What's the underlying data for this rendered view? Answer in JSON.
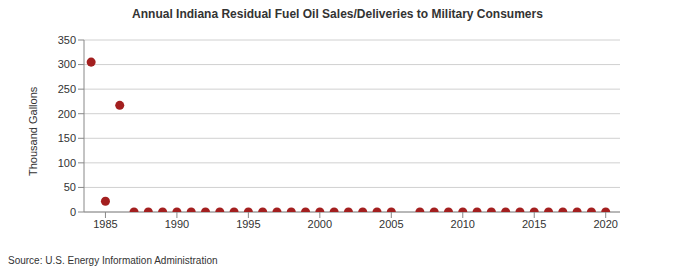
{
  "chart_data": {
    "type": "scatter",
    "title": "Annual Indiana Residual Fuel Oil Sales/Deliveries to Military Consumers",
    "y_label": "Thousand Gallons",
    "source": "Source: U.S. Energy Information Administration",
    "x": [
      1984,
      1985,
      1986,
      1987,
      1988,
      1989,
      1990,
      1991,
      1992,
      1993,
      1994,
      1995,
      1996,
      1997,
      1998,
      1999,
      2000,
      2001,
      2002,
      2003,
      2004,
      2005,
      2007,
      2008,
      2009,
      2010,
      2011,
      2012,
      2013,
      2014,
      2015,
      2016,
      2017,
      2018,
      2019,
      2020
    ],
    "values": [
      305,
      22,
      217,
      0,
      0,
      0,
      0,
      0,
      0,
      0,
      0,
      0,
      0,
      0,
      0,
      0,
      0,
      0,
      0,
      0,
      0,
      0,
      0,
      0,
      0,
      0,
      0,
      0,
      0,
      0,
      0,
      0,
      0,
      0,
      0,
      0
    ],
    "color": "#a31f1f",
    "marker": "circle",
    "xlim": [
      1983.5,
      2021
    ],
    "xticks": [
      1985,
      1990,
      1995,
      2000,
      2005,
      2010,
      2015,
      2020
    ],
    "ylim": [
      0,
      350
    ],
    "yticks": [
      0,
      50,
      100,
      150,
      200,
      250,
      300,
      350
    ],
    "grid": true
  }
}
